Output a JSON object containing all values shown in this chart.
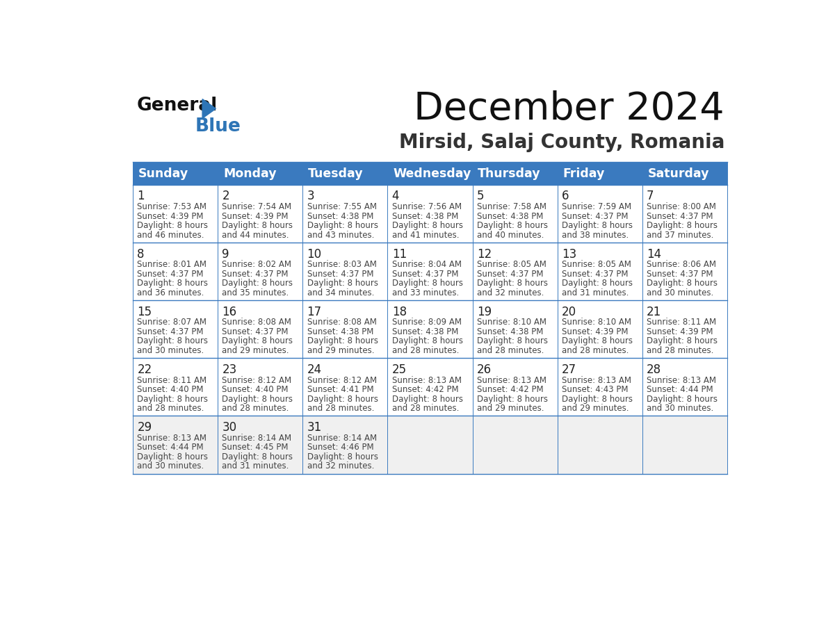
{
  "title": "December 2024",
  "subtitle": "Mirsid, Salaj County, Romania",
  "header_color": "#3a7abf",
  "header_text_color": "#ffffff",
  "border_color": "#3a7abf",
  "text_color": "#444444",
  "day_number_color": "#222222",
  "last_row_bg": "#eeeeee",
  "days_of_week": [
    "Sunday",
    "Monday",
    "Tuesday",
    "Wednesday",
    "Thursday",
    "Friday",
    "Saturday"
  ],
  "weeks": [
    [
      {
        "day": "1",
        "sunrise": "7:53 AM",
        "sunset": "4:39 PM",
        "daylight": "8 hours",
        "daylight2": "and 46 minutes."
      },
      {
        "day": "2",
        "sunrise": "7:54 AM",
        "sunset": "4:39 PM",
        "daylight": "8 hours",
        "daylight2": "and 44 minutes."
      },
      {
        "day": "3",
        "sunrise": "7:55 AM",
        "sunset": "4:38 PM",
        "daylight": "8 hours",
        "daylight2": "and 43 minutes."
      },
      {
        "day": "4",
        "sunrise": "7:56 AM",
        "sunset": "4:38 PM",
        "daylight": "8 hours",
        "daylight2": "and 41 minutes."
      },
      {
        "day": "5",
        "sunrise": "7:58 AM",
        "sunset": "4:38 PM",
        "daylight": "8 hours",
        "daylight2": "and 40 minutes."
      },
      {
        "day": "6",
        "sunrise": "7:59 AM",
        "sunset": "4:37 PM",
        "daylight": "8 hours",
        "daylight2": "and 38 minutes."
      },
      {
        "day": "7",
        "sunrise": "8:00 AM",
        "sunset": "4:37 PM",
        "daylight": "8 hours",
        "daylight2": "and 37 minutes."
      }
    ],
    [
      {
        "day": "8",
        "sunrise": "8:01 AM",
        "sunset": "4:37 PM",
        "daylight": "8 hours",
        "daylight2": "and 36 minutes."
      },
      {
        "day": "9",
        "sunrise": "8:02 AM",
        "sunset": "4:37 PM",
        "daylight": "8 hours",
        "daylight2": "and 35 minutes."
      },
      {
        "day": "10",
        "sunrise": "8:03 AM",
        "sunset": "4:37 PM",
        "daylight": "8 hours",
        "daylight2": "and 34 minutes."
      },
      {
        "day": "11",
        "sunrise": "8:04 AM",
        "sunset": "4:37 PM",
        "daylight": "8 hours",
        "daylight2": "and 33 minutes."
      },
      {
        "day": "12",
        "sunrise": "8:05 AM",
        "sunset": "4:37 PM",
        "daylight": "8 hours",
        "daylight2": "and 32 minutes."
      },
      {
        "day": "13",
        "sunrise": "8:05 AM",
        "sunset": "4:37 PM",
        "daylight": "8 hours",
        "daylight2": "and 31 minutes."
      },
      {
        "day": "14",
        "sunrise": "8:06 AM",
        "sunset": "4:37 PM",
        "daylight": "8 hours",
        "daylight2": "and 30 minutes."
      }
    ],
    [
      {
        "day": "15",
        "sunrise": "8:07 AM",
        "sunset": "4:37 PM",
        "daylight": "8 hours",
        "daylight2": "and 30 minutes."
      },
      {
        "day": "16",
        "sunrise": "8:08 AM",
        "sunset": "4:37 PM",
        "daylight": "8 hours",
        "daylight2": "and 29 minutes."
      },
      {
        "day": "17",
        "sunrise": "8:08 AM",
        "sunset": "4:38 PM",
        "daylight": "8 hours",
        "daylight2": "and 29 minutes."
      },
      {
        "day": "18",
        "sunrise": "8:09 AM",
        "sunset": "4:38 PM",
        "daylight": "8 hours",
        "daylight2": "and 28 minutes."
      },
      {
        "day": "19",
        "sunrise": "8:10 AM",
        "sunset": "4:38 PM",
        "daylight": "8 hours",
        "daylight2": "and 28 minutes."
      },
      {
        "day": "20",
        "sunrise": "8:10 AM",
        "sunset": "4:39 PM",
        "daylight": "8 hours",
        "daylight2": "and 28 minutes."
      },
      {
        "day": "21",
        "sunrise": "8:11 AM",
        "sunset": "4:39 PM",
        "daylight": "8 hours",
        "daylight2": "and 28 minutes."
      }
    ],
    [
      {
        "day": "22",
        "sunrise": "8:11 AM",
        "sunset": "4:40 PM",
        "daylight": "8 hours",
        "daylight2": "and 28 minutes."
      },
      {
        "day": "23",
        "sunrise": "8:12 AM",
        "sunset": "4:40 PM",
        "daylight": "8 hours",
        "daylight2": "and 28 minutes."
      },
      {
        "day": "24",
        "sunrise": "8:12 AM",
        "sunset": "4:41 PM",
        "daylight": "8 hours",
        "daylight2": "and 28 minutes."
      },
      {
        "day": "25",
        "sunrise": "8:13 AM",
        "sunset": "4:42 PM",
        "daylight": "8 hours",
        "daylight2": "and 28 minutes."
      },
      {
        "day": "26",
        "sunrise": "8:13 AM",
        "sunset": "4:42 PM",
        "daylight": "8 hours",
        "daylight2": "and 29 minutes."
      },
      {
        "day": "27",
        "sunrise": "8:13 AM",
        "sunset": "4:43 PM",
        "daylight": "8 hours",
        "daylight2": "and 29 minutes."
      },
      {
        "day": "28",
        "sunrise": "8:13 AM",
        "sunset": "4:44 PM",
        "daylight": "8 hours",
        "daylight2": "and 30 minutes."
      }
    ],
    [
      {
        "day": "29",
        "sunrise": "8:13 AM",
        "sunset": "4:44 PM",
        "daylight": "8 hours",
        "daylight2": "and 30 minutes."
      },
      {
        "day": "30",
        "sunrise": "8:14 AM",
        "sunset": "4:45 PM",
        "daylight": "8 hours",
        "daylight2": "and 31 minutes."
      },
      {
        "day": "31",
        "sunrise": "8:14 AM",
        "sunset": "4:46 PM",
        "daylight": "8 hours",
        "daylight2": "and 32 minutes."
      },
      null,
      null,
      null,
      null
    ]
  ],
  "logo_color_general": "#111111",
  "logo_color_blue": "#2e75b6"
}
